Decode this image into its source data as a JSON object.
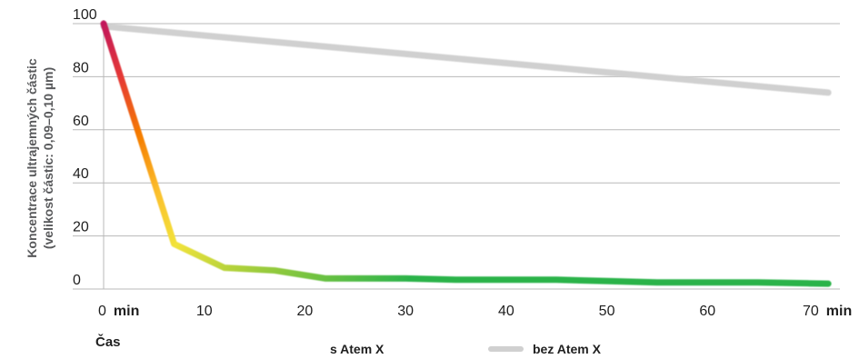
{
  "chart_data": {
    "type": "line",
    "ylabel_line1": "Koncentrace ultrajemných částic",
    "ylabel_line2": "(velikost částic: 0,09–0,10 µm)",
    "xlabel": "Čas",
    "x_unit": "min",
    "xlim": [
      0,
      70
    ],
    "ylim": [
      0,
      100
    ],
    "x_ticks": [
      0,
      10,
      20,
      30,
      40,
      50,
      60,
      70
    ],
    "y_ticks": [
      0,
      20,
      40,
      60,
      80,
      100
    ],
    "grid": true,
    "legend_position": "bottom-center",
    "series": [
      {
        "name": "s Atem X",
        "colors": [
          "#c2185b",
          "#e53935",
          "#f57c00",
          "#fbc02d",
          "#f2e33a",
          "#9ccc3c",
          "#2bb34a"
        ],
        "x": [
          0,
          7,
          12,
          17,
          22,
          30,
          35,
          40,
          45,
          50,
          55,
          60,
          65,
          72
        ],
        "y": [
          100,
          17,
          8,
          7,
          4,
          4,
          3.5,
          3.5,
          3.5,
          3,
          2.5,
          2.5,
          2.5,
          2
        ]
      },
      {
        "name": "bez Atem X",
        "colors": [
          "#d0d0d0"
        ],
        "x": [
          0,
          72
        ],
        "y": [
          99,
          74
        ]
      }
    ]
  }
}
